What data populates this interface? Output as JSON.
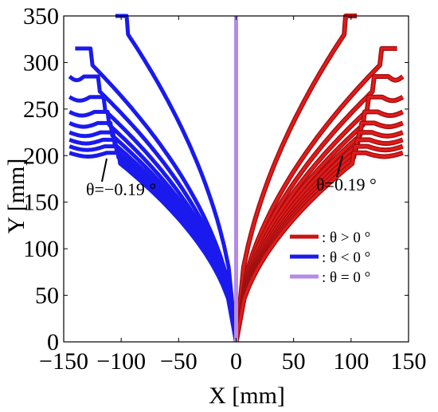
{
  "chart_data": {
    "type": "line",
    "xlabel": "X [mm]",
    "ylabel": "Y [mm]",
    "xlim": [
      -150,
      150
    ],
    "ylim": [
      0,
      350
    ],
    "x_ticks": [
      -150,
      -100,
      -50,
      0,
      50,
      100,
      150
    ],
    "y_ticks": [
      0,
      50,
      100,
      150,
      200,
      250,
      300,
      350
    ],
    "x_tick_labels": [
      "−150",
      "−100",
      "−50",
      "0",
      "50",
      "100",
      "150"
    ],
    "y_tick_labels": [
      "0",
      "50",
      "100",
      "150",
      "200",
      "250",
      "300",
      "350"
    ],
    "grid": false,
    "colors": {
      "positive": "#e31a1a",
      "negative": "#1a1aee",
      "zero": "#b48be8",
      "outline_pos": "#a01010"
    },
    "curve_end_heights": [
      350,
      315,
      285,
      263,
      247,
      235,
      225,
      217,
      210,
      203
    ],
    "curve_end_x_abs": [
      105,
      140,
      145,
      145,
      145,
      145,
      145,
      145,
      145,
      145
    ],
    "legend": {
      "position": "right",
      "entries": [
        {
          "label": ": θ > 0 °",
          "color": "#c81414"
        },
        {
          "label": ": θ < 0 °",
          "color": "#1a1aee"
        },
        {
          "label": ": θ = 0 °",
          "color": "#b48be8"
        }
      ]
    },
    "annotations": [
      {
        "text": "θ=−0.19 °",
        "target": [
          -135,
          205
        ]
      },
      {
        "text": "θ=0.19 °",
        "target": [
          135,
          205
        ]
      }
    ]
  }
}
